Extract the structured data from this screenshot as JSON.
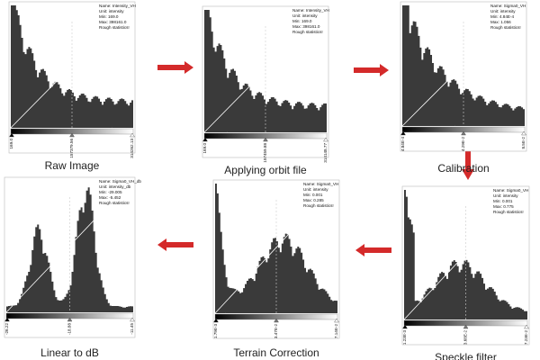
{
  "panels": [
    {
      "caption": "Raw Image",
      "info": [
        "Name: Intensity_VH",
        "Unit: intensity",
        "Min: 169.0",
        "Max: 398161.0",
        "Rough statistics!"
      ],
      "axis_labels": [
        "169.0",
        "157379.56",
        "314262.13"
      ]
    },
    {
      "caption": "Applying orbit file",
      "info": [
        "Name: Intensity_VH",
        "Unit: intensity",
        "Min: 169.0",
        "Max: 398161.0",
        "Rough statistics!"
      ],
      "axis_labels": [
        "169.0",
        "157459.88",
        "314148.77"
      ]
    },
    {
      "caption": "Calibration",
      "info": [
        "Name: Sigma0_VH",
        "Unit: intensity",
        "Min: 4.84E-4",
        "Max: 1.056",
        "Rough statistics!"
      ],
      "axis_labels": [
        "4.84E-4",
        "4.29E-2",
        "8.5E-2"
      ]
    },
    {
      "caption": "Speckle filter",
      "info": [
        "Name: Sigma0_VH",
        "Unit: intensity",
        "Min: 0.001",
        "Max: 0.775",
        "Rough statistics!"
      ],
      "axis_labels": [
        "1.23E-3",
        "3.68E-2",
        "7.23E-2"
      ]
    },
    {
      "caption": "Terrain Correction",
      "info": [
        "Name: Sigma0_VH",
        "Unit: intensity",
        "Min: 0.001",
        "Max: 0.285",
        "Rough statistics!"
      ],
      "axis_labels": [
        "1.79E-3",
        "3.47E-2",
        "7.14E-2"
      ]
    },
    {
      "caption": "Linear to dB",
      "info": [
        "Name: Sigma0_VH_db",
        "Unit: intensity_db",
        "Min: -29.005",
        "Max: -5.452",
        "Rough statistics!"
      ],
      "axis_labels": [
        "-26.22",
        "-18.88",
        "-11.45"
      ]
    }
  ]
}
